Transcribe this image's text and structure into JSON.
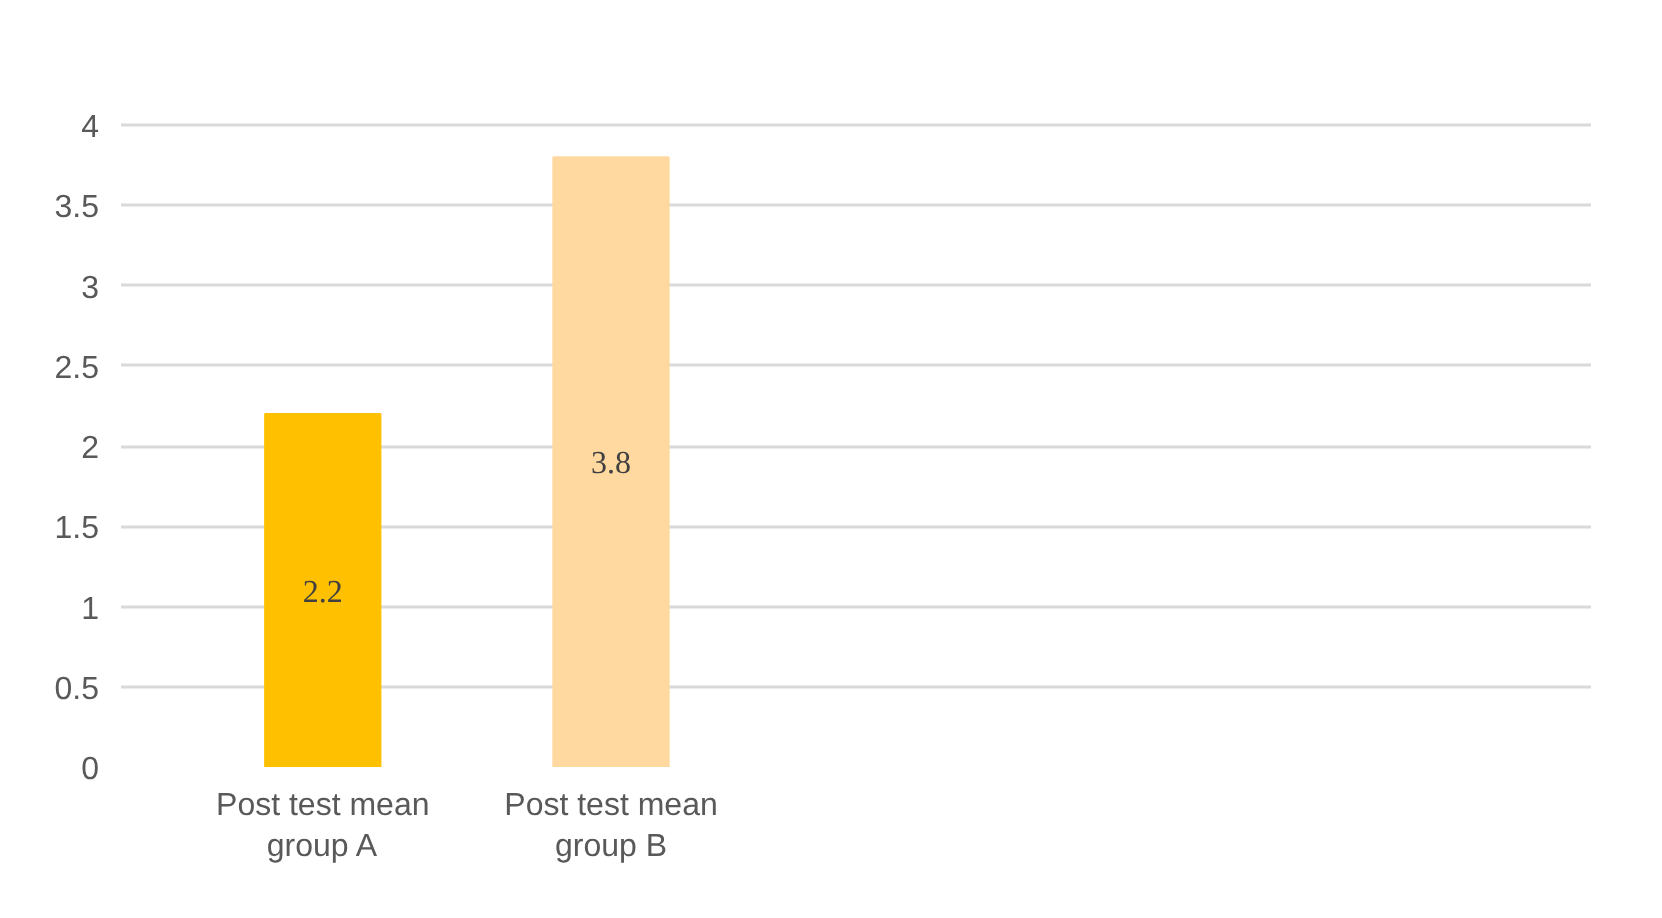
{
  "chart_data": {
    "type": "bar",
    "categories": [
      "Post test mean group A",
      "Post test mean group B"
    ],
    "values": [
      2.2,
      3.8
    ],
    "colors": [
      "#ffc000",
      "#ffd9a0"
    ],
    "ylim": [
      0,
      4
    ],
    "yticks": [
      0,
      0.5,
      1,
      1.5,
      2,
      2.5,
      3,
      3.5,
      4
    ],
    "grid": "y",
    "data_labels": true
  }
}
